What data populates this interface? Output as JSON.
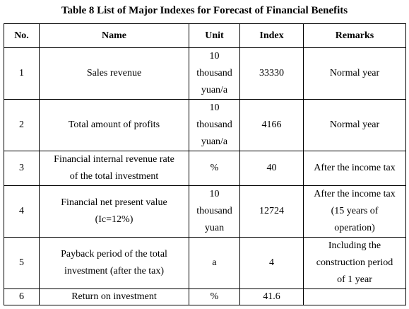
{
  "table": {
    "caption": "Table 8 List of Major Indexes for Forecast of Financial Benefits",
    "headers": {
      "no": "No.",
      "name": "Name",
      "unit": "Unit",
      "index": "Index",
      "remarks": "Remarks"
    },
    "rows": [
      {
        "no": "1",
        "name": [
          "Sales revenue"
        ],
        "unit": [
          "10",
          "thousand",
          "yuan/a"
        ],
        "index": "33330",
        "remarks": [
          "Normal year"
        ]
      },
      {
        "no": "2",
        "name": [
          "Total amount of profits"
        ],
        "unit": [
          "10",
          "thousand",
          "yuan/a"
        ],
        "index": "4166",
        "remarks": [
          "Normal year"
        ]
      },
      {
        "no": "3",
        "name": [
          "Financial internal revenue rate",
          "of the total investment"
        ],
        "unit": [
          "%"
        ],
        "index": "40",
        "remarks": [
          "After the income tax"
        ]
      },
      {
        "no": "4",
        "name": [
          "Financial net present value",
          "(Ic=12%)"
        ],
        "unit": [
          "10",
          "thousand",
          "yuan"
        ],
        "index": "12724",
        "remarks": [
          "After the income tax",
          "(15 years of",
          "operation)"
        ]
      },
      {
        "no": "5",
        "name": [
          "Payback period of the total",
          "investment (after the tax)"
        ],
        "unit": [
          "a"
        ],
        "index": "4",
        "remarks": [
          "Including the",
          "construction period",
          "of 1 year"
        ]
      },
      {
        "no": "6",
        "name": [
          "Return on investment"
        ],
        "unit": [
          "%"
        ],
        "index": "41.6",
        "remarks": [
          ""
        ]
      }
    ]
  }
}
